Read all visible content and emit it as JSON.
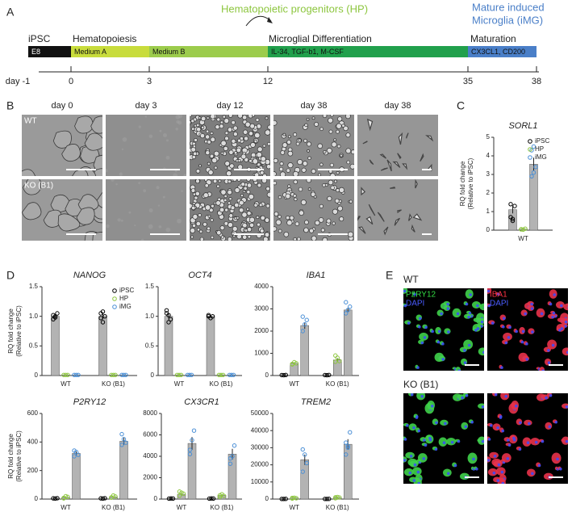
{
  "panel_a": {
    "letter": "A",
    "hp_label": "Hematopoietic progenitors (HP)",
    "img_label": [
      "Mature induced",
      "Microglia  (iMG)"
    ],
    "stages": [
      "iPSC",
      "Hematopoiesis",
      "Microglial Differentiation",
      "Maturation"
    ],
    "media": [
      "E8",
      "Medium A",
      "Medium B",
      "IL-34, TGF-b1, M-CSF",
      "CX3CL1, CD200"
    ],
    "days": [
      "day -1",
      "0",
      "3",
      "12",
      "35",
      "38"
    ]
  },
  "panel_b": {
    "letter": "B",
    "columns": [
      "day 0",
      "day 3",
      "day 12",
      "day 38",
      "day 38"
    ],
    "rows": [
      "WT",
      "KO (B1)"
    ]
  },
  "panel_c": {
    "letter": "C"
  },
  "panel_d": {
    "letter": "D"
  },
  "panel_e": {
    "letter": "E",
    "rows": [
      "WT",
      "KO (B1)"
    ],
    "stains": [
      [
        "P2RY12",
        "DAPI"
      ],
      [
        "IBA1",
        "DAPI"
      ]
    ]
  },
  "chart_data": [
    {
      "type": "bar",
      "title": "SORL1",
      "ylabel": [
        "RQ fold change",
        "(Relative to iPSC)"
      ],
      "categories": [
        "WT"
      ],
      "bar_color": "#b3b3b3",
      "ylim": [
        0,
        5
      ],
      "yticks": [
        0,
        1,
        2,
        3,
        4,
        5
      ],
      "legend": "upper right",
      "series": [
        {
          "name": "iPSC",
          "color": "#000000",
          "values": [
            1.1
          ],
          "errors": [
            0.2
          ],
          "points": [
            [
              0.7,
              0.6,
              1.3,
              1.4,
              0.5
            ]
          ]
        },
        {
          "name": "HP",
          "color": "#8dc63f",
          "values": [
            0.05
          ],
          "errors": [
            0.02
          ],
          "points": [
            [
              0.05,
              0.03,
              0.08,
              0.04
            ]
          ]
        },
        {
          "name": "iMG",
          "color": "#4a8fd6",
          "values": [
            3.55
          ],
          "errors": [
            0.35
          ],
          "points": [
            [
              4.3,
              4.5,
              3.4,
              2.9,
              3.1
            ]
          ]
        }
      ]
    },
    {
      "type": "bar",
      "title": "NANOG",
      "ylabel": [
        "RQ fold change",
        "(Relative to iPSC)"
      ],
      "categories": [
        "WT",
        "KO (B1)"
      ],
      "bar_color": "#b3b3b3",
      "ylim": [
        0,
        1.5
      ],
      "yticks": [
        0,
        0.5,
        {
          "value": 1,
          "label": "1.0"
        },
        1.5
      ],
      "legend": "upper right",
      "series": [
        {
          "name": "iPSC",
          "color": "#000000",
          "values": [
            1.0,
            1.0
          ],
          "errors": [
            0.03,
            0.05
          ],
          "points": [
            [
              1.02,
              0.98,
              1.05,
              0.95,
              1.0
            ],
            [
              1.05,
              0.9,
              1.0,
              0.97,
              1.08
            ]
          ]
        },
        {
          "name": "HP",
          "color": "#8dc63f",
          "values": [
            0.01,
            0.01
          ],
          "errors": [
            0,
            0
          ],
          "points": [
            [
              0.01,
              0.01,
              0.01
            ],
            [
              0.01,
              0.01,
              0.01
            ]
          ]
        },
        {
          "name": "iMG",
          "color": "#4a8fd6",
          "values": [
            0.01,
            0.01
          ],
          "errors": [
            0,
            0
          ],
          "points": [
            [
              0.01,
              0.01,
              0.01
            ],
            [
              0.01,
              0.01,
              0.01
            ]
          ]
        }
      ]
    },
    {
      "type": "bar",
      "title": "OCT4",
      "categories": [
        "WT",
        "KO (B1)"
      ],
      "bar_color": "#b3b3b3",
      "ylim": [
        0,
        1.5
      ],
      "yticks": [
        0,
        0.5,
        {
          "value": 1,
          "label": "1.0"
        },
        1.5
      ],
      "series": [
        {
          "color": "#000000",
          "values": [
            1.0,
            1.0
          ],
          "errors": [
            0.04,
            0.02
          ],
          "points": [
            [
              1.05,
              0.9,
              0.95,
              1.1,
              1.02
            ],
            [
              1.02,
              0.97,
              1.0,
              1.0
            ]
          ]
        },
        {
          "color": "#8dc63f",
          "values": [
            0.01,
            0.01
          ],
          "errors": [
            0,
            0
          ],
          "points": [
            [
              0.01,
              0.01,
              0.01
            ],
            [
              0.01,
              0.01,
              0.01
            ]
          ]
        },
        {
          "color": "#4a8fd6",
          "values": [
            0.01,
            0.01
          ],
          "errors": [
            0,
            0
          ],
          "points": [
            [
              0.01,
              0.01,
              0.01
            ],
            [
              0.01,
              0.01,
              0.01
            ]
          ]
        }
      ]
    },
    {
      "type": "bar",
      "title": "IBA1",
      "categories": [
        "WT",
        "KO (B1)"
      ],
      "bar_color": "#b3b3b3",
      "ylim": [
        0,
        4000
      ],
      "yticks": [
        0,
        1000,
        2000,
        3000,
        4000
      ],
      "series": [
        {
          "color": "#000000",
          "values": [
            20,
            20
          ],
          "errors": [
            5,
            5
          ],
          "points": [
            [
              20,
              15,
              25
            ],
            [
              20,
              15,
              25
            ]
          ]
        },
        {
          "color": "#8dc63f",
          "values": [
            550,
            700
          ],
          "errors": [
            40,
            80
          ],
          "points": [
            [
              500,
              600,
              550,
              520
            ],
            [
              620,
              800,
              650,
              900
            ]
          ]
        },
        {
          "color": "#4a8fd6",
          "values": [
            2250,
            2950
          ],
          "errors": [
            150,
            100
          ],
          "points": [
            [
              2000,
              2300,
              2500,
              2650
            ],
            [
              2800,
              2950,
              3100,
              3300
            ]
          ]
        }
      ]
    },
    {
      "type": "bar",
      "title": "P2RY12",
      "ylabel": [
        "RQ fold change",
        "(Relative to iPSC)"
      ],
      "categories": [
        "WT",
        "KO (B1)"
      ],
      "bar_color": "#b3b3b3",
      "ylim": [
        0,
        600
      ],
      "yticks": [
        0,
        200,
        400,
        600
      ],
      "series": [
        {
          "color": "#000000",
          "values": [
            5,
            5
          ],
          "errors": [
            1,
            1
          ],
          "points": [
            [
              5,
              4,
              6
            ],
            [
              5,
              4,
              6
            ]
          ]
        },
        {
          "color": "#8dc63f",
          "values": [
            12,
            15
          ],
          "errors": [
            5,
            5
          ],
          "points": [
            [
              5,
              20,
              15,
              8
            ],
            [
              10,
              25,
              18,
              12
            ]
          ]
        },
        {
          "color": "#4a8fd6",
          "values": [
            320,
            405
          ],
          "errors": [
            15,
            25
          ],
          "points": [
            [
              300,
              330,
              310,
              340
            ],
            [
              380,
              420,
              395,
              455
            ]
          ]
        }
      ]
    },
    {
      "type": "bar",
      "title": "CX3CR1",
      "categories": [
        "WT",
        "KO (B1)"
      ],
      "bar_color": "#b3b3b3",
      "ylim": [
        0,
        8000
      ],
      "yticks": [
        0,
        2000,
        4000,
        6000,
        8000
      ],
      "series": [
        {
          "color": "#000000",
          "values": [
            50,
            50
          ],
          "errors": [
            10,
            10
          ],
          "points": [
            [
              40,
              60,
              50
            ],
            [
              40,
              60,
              50
            ]
          ]
        },
        {
          "color": "#8dc63f",
          "values": [
            450,
            350
          ],
          "errors": [
            100,
            80
          ],
          "points": [
            [
              300,
              600,
              500,
              700
            ],
            [
              200,
              450,
              300,
              350
            ]
          ]
        },
        {
          "color": "#4a8fd6",
          "values": [
            5200,
            4200
          ],
          "errors": [
            600,
            500
          ],
          "points": [
            [
              4200,
              5500,
              6400,
              4600
            ],
            [
              3800,
              4000,
              5000,
              3300
            ]
          ]
        }
      ]
    },
    {
      "type": "bar",
      "title": "TREM2",
      "categories": [
        "WT",
        "KO (B1)"
      ],
      "bar_color": "#b3b3b3",
      "ylim": [
        0,
        50000
      ],
      "yticks": [
        0,
        10000,
        20000,
        30000,
        40000,
        50000
      ],
      "series": [
        {
          "color": "#000000",
          "values": [
            100,
            100
          ],
          "errors": [
            20,
            20
          ],
          "points": [
            [
              100,
              80,
              120
            ],
            [
              100,
              80,
              120
            ]
          ]
        },
        {
          "color": "#8dc63f",
          "values": [
            600,
            900
          ],
          "errors": [
            150,
            200
          ],
          "points": [
            [
              300,
              800,
              500,
              700
            ],
            [
              500,
              1200,
              900,
              1000
            ]
          ]
        },
        {
          "color": "#4a8fd6",
          "values": [
            23000,
            32000
          ],
          "errors": [
            3000,
            3000
          ],
          "points": [
            [
              16000,
              26000,
              21000,
              29000
            ],
            [
              26000,
              30000,
              39000,
              33000,
              31000
            ]
          ]
        }
      ]
    }
  ]
}
